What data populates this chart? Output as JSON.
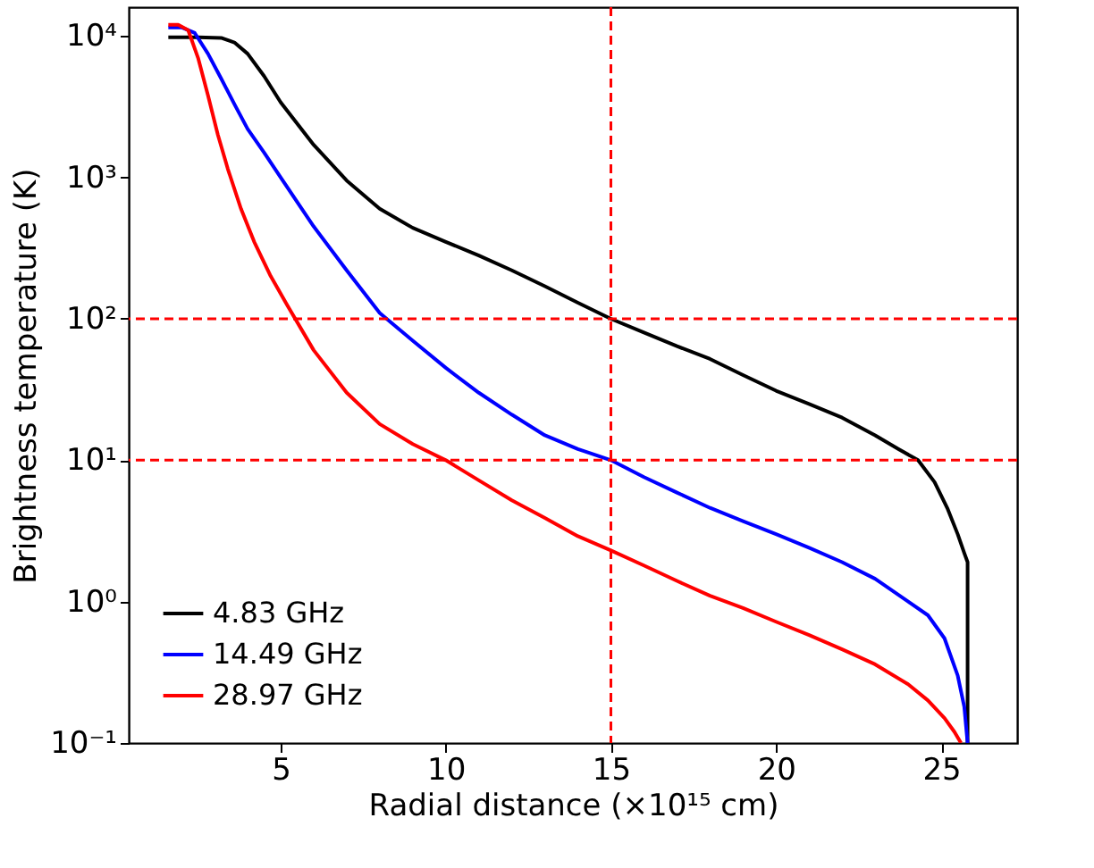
{
  "chart_data": {
    "type": "line",
    "xlabel": "Radial distance (×10¹⁵ cm)",
    "ylabel": "Brightness temperature (K)",
    "log": "y",
    "xlim": [
      0.4,
      27.3
    ],
    "ylim": [
      0.1,
      16000
    ],
    "xticks": [
      5,
      10,
      15,
      20,
      25
    ],
    "yticks": [
      {
        "value": 0.1,
        "label": "10⁻¹"
      },
      {
        "value": 1,
        "label": "10⁰"
      },
      {
        "value": 10,
        "label": "10¹"
      },
      {
        "value": 100,
        "label": "10²"
      },
      {
        "value": 1000,
        "label": "10³"
      },
      {
        "value": 10000,
        "label": "10⁴"
      }
    ],
    "grid": false,
    "legend": "bottom left",
    "line_style": "solid",
    "marker": "none",
    "series": [
      {
        "name": "4.83 GHz",
        "color": "#000000",
        "x": [
          1.6,
          2.5,
          3.2,
          3.6,
          4.0,
          4.5,
          5.0,
          6.0,
          7.0,
          8.0,
          9.0,
          10.0,
          11.0,
          12.0,
          13.0,
          14.0,
          15.0,
          16.0,
          17.0,
          18.0,
          19.0,
          20.0,
          21.0,
          22.0,
          23.0,
          23.7,
          24.3,
          24.8,
          25.2,
          25.5,
          25.7,
          25.8,
          25.8
        ],
        "values": [
          9800,
          9800,
          9700,
          9000,
          7500,
          5200,
          3400,
          1700,
          950,
          600,
          440,
          350,
          280,
          220,
          170,
          130,
          100,
          80,
          64,
          52,
          40,
          31,
          25,
          20,
          15,
          12,
          10,
          7,
          4.5,
          3,
          2.2,
          1.9,
          0.1
        ]
      },
      {
        "name": "14.49 GHz",
        "color": "#0000ff",
        "x": [
          1.6,
          2.0,
          2.4,
          2.8,
          3.2,
          3.6,
          4.0,
          4.5,
          5.0,
          6.0,
          7.0,
          8.0,
          9.0,
          10.0,
          11.0,
          12.0,
          13.0,
          14.0,
          15.0,
          16.0,
          17.0,
          18.0,
          19.0,
          20.0,
          21.0,
          22.0,
          23.0,
          24.0,
          24.6,
          25.1,
          25.5,
          25.7,
          25.8
        ],
        "values": [
          11500,
          11500,
          10500,
          7500,
          5000,
          3300,
          2200,
          1500,
          1000,
          450,
          220,
          110,
          70,
          45,
          30,
          21,
          15,
          12,
          10,
          7.6,
          5.9,
          4.6,
          3.7,
          3.0,
          2.4,
          1.9,
          1.45,
          1.0,
          0.8,
          0.55,
          0.3,
          0.18,
          0.1
        ]
      },
      {
        "name": "28.97 GHz",
        "color": "#ff0000",
        "x": [
          1.6,
          1.9,
          2.2,
          2.5,
          2.8,
          3.1,
          3.4,
          3.8,
          4.2,
          4.7,
          5.2,
          6.0,
          7.0,
          8.0,
          9.0,
          10.0,
          11.0,
          12.0,
          13.0,
          14.0,
          15.0,
          16.0,
          17.0,
          18.0,
          19.0,
          20.0,
          21.0,
          22.0,
          23.0,
          24.0,
          24.6,
          25.1,
          25.4,
          25.6
        ],
        "values": [
          12000,
          12000,
          11000,
          7000,
          3800,
          2000,
          1150,
          600,
          350,
          200,
          125,
          60,
          30,
          18,
          13,
          10,
          7.2,
          5.2,
          3.9,
          2.9,
          2.3,
          1.8,
          1.4,
          1.1,
          0.9,
          0.72,
          0.58,
          0.46,
          0.36,
          0.26,
          0.2,
          0.15,
          0.12,
          0.1
        ]
      }
    ],
    "ref_lines": [
      {
        "axis": "y",
        "value": 100,
        "color": "#ff0000",
        "line_style": "dashed"
      },
      {
        "axis": "y",
        "value": 10,
        "color": "#ff0000",
        "line_style": "dashed"
      },
      {
        "axis": "x",
        "value": 15,
        "color": "#ff0000",
        "line_style": "dashed"
      }
    ]
  }
}
